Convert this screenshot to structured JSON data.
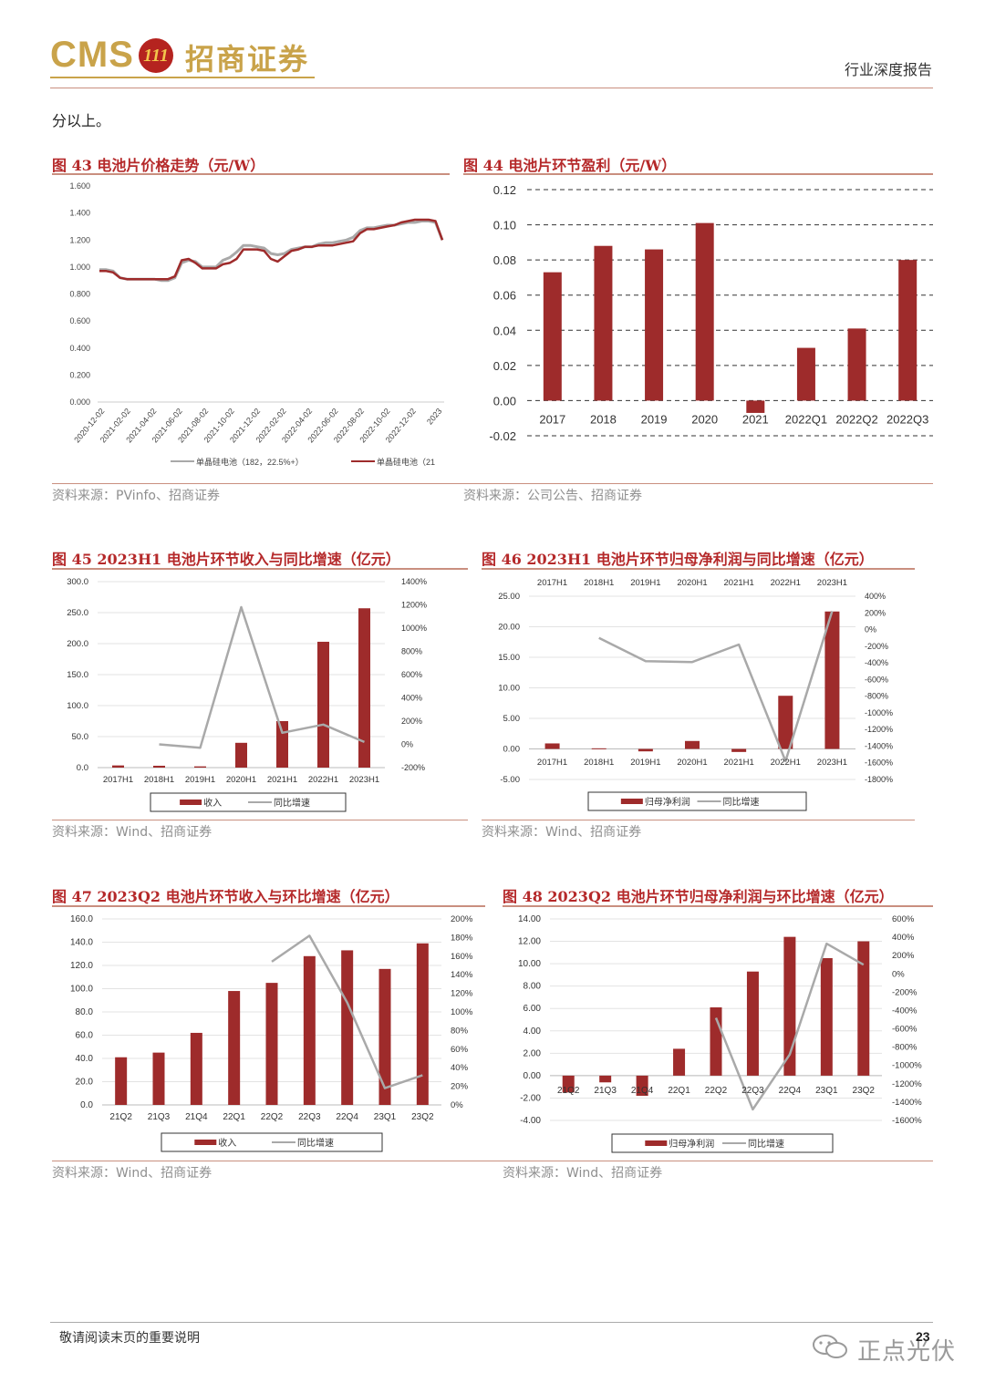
{
  "header": {
    "logo_text": "CMS",
    "logo_badge": "111",
    "logo_cn": "招商证券",
    "report_type": "行业深度报告"
  },
  "intro_text": "分以上。",
  "figures": {
    "fig43": {
      "title": "图 43 电池片价格走势（元/W）",
      "source": "资料来源：PVinfo、招商证券"
    },
    "fig44": {
      "title": "图 44 电池片环节盈利（元/W）",
      "source": "资料来源：公司公告、招商证券"
    },
    "fig45": {
      "title": "图 45 2023H1 电池片环节收入与同比增速（亿元）",
      "source": "资料来源：Wind、招商证券"
    },
    "fig46": {
      "title": "图 46 2023H1 电池片环节归母净利润与同比增速（亿元）",
      "source": "资料来源：Wind、招商证券"
    },
    "fig47": {
      "title": "图 47 2023Q2 电池片环节收入与环比增速（亿元）",
      "source": "资料来源：Wind、招商证券"
    },
    "fig48": {
      "title": "图 48 2023Q2 电池片环节归母净利润与环比增速（亿元）",
      "source": "资料来源：Wind、招商证券"
    }
  },
  "footer": {
    "note": "敬请阅读末页的重要说明",
    "page": "23",
    "watermark": "正点光伏"
  },
  "colors": {
    "bar": "#9e2b2b",
    "line_gray": "#a9a9a9",
    "accent": "#b5292a"
  },
  "chart_data": [
    {
      "id": "fig43",
      "type": "line",
      "title": "图 43 电池片价格走势（元/W）",
      "yticks": [
        "1.600",
        "1.400",
        "1.200",
        "1.000",
        "0.800",
        "0.600",
        "0.400",
        "0.200",
        "0.000"
      ],
      "ylim": [
        0,
        1.6
      ],
      "xticks": [
        "2020-12-02",
        "2021-02-02",
        "2021-04-02",
        "2021-06-02",
        "2021-08-02",
        "2021-10-02",
        "2021-12-02",
        "2022-02-02",
        "2022-04-02",
        "2022-06-02",
        "2022-08-02",
        "2022-10-02",
        "2022-12-02",
        "2023"
      ],
      "series": [
        {
          "name": "单晶硅电池（182，22.5%+）",
          "color": "#a9a9a9",
          "values": [
            0.98,
            0.98,
            0.97,
            0.92,
            0.91,
            0.91,
            0.91,
            0.91,
            0.91,
            0.9,
            0.9,
            0.92,
            1.03,
            1.05,
            1.04,
            1.0,
            1.0,
            1.0,
            1.05,
            1.07,
            1.11,
            1.16,
            1.16,
            1.15,
            1.14,
            1.1,
            1.09,
            1.1,
            1.13,
            1.14,
            1.15,
            1.15,
            1.17,
            1.18,
            1.18,
            1.19,
            1.2,
            1.22,
            1.27,
            1.29,
            1.29,
            1.3,
            1.31,
            1.31,
            1.32,
            1.33,
            1.33,
            1.34,
            1.34,
            1.33,
            1.2
          ]
        },
        {
          "name": "单晶硅电池（21",
          "color": "#9e2b2b",
          "values": [
            0.97,
            0.97,
            0.96,
            0.92,
            0.91,
            0.91,
            0.91,
            0.91,
            0.91,
            0.91,
            0.91,
            0.93,
            1.05,
            1.06,
            1.03,
            0.99,
            0.99,
            0.99,
            1.02,
            1.03,
            1.06,
            1.13,
            1.13,
            1.13,
            1.12,
            1.06,
            1.04,
            1.08,
            1.12,
            1.13,
            1.15,
            1.15,
            1.16,
            1.16,
            1.16,
            1.17,
            1.18,
            1.19,
            1.25,
            1.28,
            1.28,
            1.29,
            1.3,
            1.31,
            1.33,
            1.34,
            1.35,
            1.35,
            1.35,
            1.34,
            1.2
          ]
        }
      ]
    },
    {
      "id": "fig44",
      "type": "bar",
      "title": "图 44 电池片环节盈利（元/W）",
      "categories": [
        "2017",
        "2018",
        "2019",
        "2020",
        "2021",
        "2022Q1",
        "2022Q2",
        "2022Q3"
      ],
      "values": [
        0.073,
        0.088,
        0.086,
        0.101,
        -0.007,
        0.03,
        0.041,
        0.08
      ],
      "yticks": [
        "0.12",
        "0.10",
        "0.08",
        "0.06",
        "0.04",
        "0.02",
        "0.00",
        "-0.02"
      ],
      "ylim": [
        -0.02,
        0.12
      ]
    },
    {
      "id": "fig45",
      "type": "bar+line",
      "title": "图 45 2023H1 电池片环节收入与同比增速（亿元）",
      "categories": [
        "2017H1",
        "2018H1",
        "2019H1",
        "2020H1",
        "2021H1",
        "2022H1",
        "2023H1"
      ],
      "bar": {
        "name": "收入",
        "values": [
          3.5,
          3.0,
          2.0,
          40,
          75,
          203,
          257
        ]
      },
      "line": {
        "name": "同比增速",
        "values": [
          null,
          0,
          -30,
          1180,
          100,
          170,
          20
        ]
      },
      "left_ticks": [
        "300.0",
        "250.0",
        "200.0",
        "150.0",
        "100.0",
        "50.0",
        "0.0"
      ],
      "left_lim": [
        0,
        300
      ],
      "right_ticks": [
        "1400%",
        "1200%",
        "1000%",
        "800%",
        "600%",
        "400%",
        "200%",
        "0%",
        "-200%"
      ],
      "right_lim": [
        -200,
        1400
      ]
    },
    {
      "id": "fig46",
      "type": "bar+line",
      "title": "图 46 2023H1 电池片环节归母净利润与同比增速（亿元）",
      "categories": [
        "2017H1",
        "2018H1",
        "2019H1",
        "2020H1",
        "2021H1",
        "2022H1",
        "2023H1"
      ],
      "bar": {
        "name": "归母净利润",
        "values": [
          0.9,
          0.1,
          -0.4,
          1.3,
          -0.5,
          8.7,
          22.5
        ]
      },
      "line": {
        "name": "同比增速",
        "values": [
          null,
          -100,
          -380,
          -390,
          -180,
          -1580,
          220
        ]
      },
      "left_ticks": [
        "25.00",
        "20.00",
        "15.00",
        "10.00",
        "5.00",
        "0.00",
        "-5.00"
      ],
      "left_lim": [
        -5,
        25
      ],
      "right_ticks": [
        "400%",
        "200%",
        "0%",
        "-200%",
        "-400%",
        "-600%",
        "-800%",
        "-1000%",
        "-1200%",
        "-1400%",
        "-1600%",
        "-1800%"
      ],
      "right_lim": [
        -1800,
        400
      ]
    },
    {
      "id": "fig47",
      "type": "bar+line",
      "title": "图 47 2023Q2 电池片环节收入与环比增速（亿元）",
      "categories": [
        "21Q2",
        "21Q3",
        "21Q4",
        "22Q1",
        "22Q2",
        "22Q3",
        "22Q4",
        "23Q1",
        "23Q2"
      ],
      "bar": {
        "name": "收入",
        "values": [
          41,
          45,
          62,
          98,
          105,
          128,
          133,
          117,
          139
        ]
      },
      "line": {
        "name": "同比增速",
        "values": [
          null,
          null,
          null,
          null,
          154,
          182,
          110,
          18,
          32
        ]
      },
      "left_ticks": [
        "160.0",
        "140.0",
        "120.0",
        "100.0",
        "80.0",
        "60.0",
        "40.0",
        "20.0",
        "0.0"
      ],
      "left_lim": [
        0,
        160
      ],
      "right_ticks": [
        "200%",
        "180%",
        "160%",
        "140%",
        "120%",
        "100%",
        "80%",
        "60%",
        "40%",
        "20%",
        "0%"
      ],
      "right_lim": [
        0,
        200
      ]
    },
    {
      "id": "fig48",
      "type": "bar+line",
      "title": "图 48 2023Q2 电池片环节归母净利润与环比增速（亿元）",
      "categories": [
        "21Q2",
        "21Q3",
        "21Q4",
        "22Q1",
        "22Q2",
        "22Q3",
        "22Q4",
        "23Q1",
        "23Q2"
      ],
      "bar": {
        "name": "归母净利润",
        "values": [
          -1.5,
          -0.6,
          -1.8,
          2.4,
          6.1,
          9.3,
          12.4,
          10.5,
          12.0
        ]
      },
      "line": {
        "name": "同比增速",
        "values": [
          null,
          null,
          null,
          null,
          -480,
          -1480,
          -880,
          330,
          100
        ]
      },
      "left_ticks": [
        "14.00",
        "12.00",
        "10.00",
        "8.00",
        "6.00",
        "4.00",
        "2.00",
        "0.00",
        "-2.00",
        "-4.00"
      ],
      "left_lim": [
        -4,
        14
      ],
      "right_ticks": [
        "600%",
        "400%",
        "200%",
        "0%",
        "-200%",
        "-400%",
        "-600%",
        "-800%",
        "-1000%",
        "-1200%",
        "-1400%",
        "-1600%"
      ],
      "right_lim": [
        -1600,
        600
      ]
    }
  ]
}
